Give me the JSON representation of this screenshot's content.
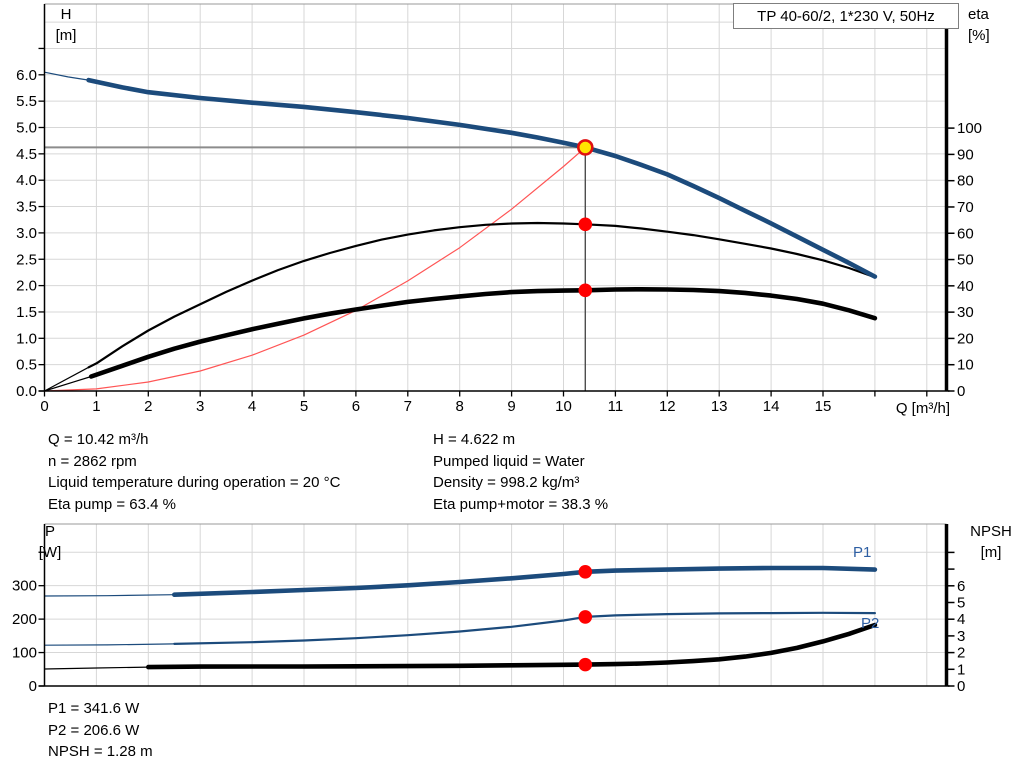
{
  "title_box": "TP 40-60/2, 1*230 V, 50Hz",
  "colors": {
    "curve_blue": "#1c4b7c",
    "curve_black": "#000000",
    "system_red": "#ff5555",
    "marker_red": "#ff0000",
    "op_yellow": "#ffe400",
    "op_ring_red": "#e01010",
    "grid": "#d7d7d7",
    "guide_gray": "#8c8c8c",
    "series_label_blue": "#2e5fa3"
  },
  "info_top": {
    "left": [
      "Q = 10.42 m³/h",
      "n = 2862 rpm",
      "Liquid temperature during operation = 20 °C",
      "Eta pump = 63.4 %"
    ],
    "right": [
      "H = 4.622 m",
      "Pumped liquid = Water",
      "Density = 998.2 kg/m³",
      "Eta pump+motor = 38.3 %"
    ]
  },
  "info_bottom": [
    "P1 = 341.6 W",
    "P2 = 206.6 W",
    "NPSH = 1.28 m"
  ],
  "chart_data": [
    {
      "type": "line",
      "title": "TP 40-60/2, 1*230 V, 50Hz",
      "x_axis": {
        "label": "Q [m³/h]",
        "min": 0,
        "max": 17.4,
        "tick_step": 1,
        "tick_count": 18,
        "tick_labels": [
          "0",
          "1",
          "2",
          "3",
          "4",
          "5",
          "6",
          "7",
          "8",
          "9",
          "10",
          "11",
          "12",
          "13",
          "14",
          "15"
        ]
      },
      "y_left": {
        "name": "H",
        "unit": "[m]",
        "min": 0,
        "max": 7.34,
        "tick_step": 0.5,
        "tick_count": 13,
        "tick_labels": [
          "0.0",
          "0.5",
          "1.0",
          "1.5",
          "2.0",
          "2.5",
          "3.0",
          "3.5",
          "4.0",
          "4.5",
          "5.0",
          "5.5",
          "6.0"
        ]
      },
      "y_right": {
        "name": "eta",
        "unit": "[%]",
        "min": 0,
        "max": 147,
        "tick_step": 10,
        "tick_count": 11,
        "tick_labels": [
          "0",
          "10",
          "20",
          "30",
          "40",
          "50",
          "60",
          "70",
          "80",
          "90",
          "100"
        ]
      },
      "grid": true,
      "series": [
        {
          "name": "system-curve",
          "axis": "left",
          "color": "#ff5555",
          "width": 1.2,
          "points": [
            [
              0,
              0
            ],
            [
              1,
              0.04
            ],
            [
              2,
              0.17
            ],
            [
              3,
              0.38
            ],
            [
              4,
              0.68
            ],
            [
              5,
              1.06
            ],
            [
              6,
              1.53
            ],
            [
              7,
              2.09
            ],
            [
              8,
              2.72
            ],
            [
              9,
              3.45
            ],
            [
              10,
              4.26
            ],
            [
              10.42,
              4.622
            ]
          ]
        },
        {
          "name": "eta-pump",
          "axis": "right",
          "color": "#000000",
          "width": 2.2,
          "thin": [
            [
              0,
              0
            ],
            [
              0.85,
              9
            ]
          ],
          "points": [
            [
              0.85,
              9
            ],
            [
              1,
              10.5
            ],
            [
              1.5,
              17
            ],
            [
              2,
              23
            ],
            [
              2.5,
              28.3
            ],
            [
              3,
              33
            ],
            [
              3.5,
              37.7
            ],
            [
              4,
              42
            ],
            [
              4.5,
              46
            ],
            [
              5,
              49.5
            ],
            [
              5.5,
              52.5
            ],
            [
              6,
              55.2
            ],
            [
              6.5,
              57.6
            ],
            [
              7,
              59.5
            ],
            [
              7.5,
              61.1
            ],
            [
              8,
              62.3
            ],
            [
              8.5,
              63.2
            ],
            [
              9,
              63.7
            ],
            [
              9.5,
              63.9
            ],
            [
              10,
              63.7
            ],
            [
              10.42,
              63.4
            ],
            [
              11,
              62.8
            ],
            [
              11.5,
              61.8
            ],
            [
              12,
              60.6
            ],
            [
              12.5,
              59.3
            ],
            [
              13,
              57.7
            ],
            [
              13.5,
              56.0
            ],
            [
              14,
              54.2
            ],
            [
              14.5,
              52.1
            ],
            [
              15,
              49.7
            ],
            [
              15.5,
              46.8
            ],
            [
              16,
              43.3
            ]
          ]
        },
        {
          "name": "eta-pump-motor",
          "axis": "right",
          "color": "#000000",
          "width": 4.6,
          "thin": [
            [
              0,
              0
            ],
            [
              0.9,
              5.5
            ]
          ],
          "points": [
            [
              0.9,
              5.5
            ],
            [
              1.5,
              9.6
            ],
            [
              2,
              13
            ],
            [
              2.5,
              16.1
            ],
            [
              3,
              18.8
            ],
            [
              3.5,
              21.2
            ],
            [
              4,
              23.5
            ],
            [
              4.5,
              25.6
            ],
            [
              5,
              27.6
            ],
            [
              5.5,
              29.4
            ],
            [
              6,
              31
            ],
            [
              6.5,
              32.5
            ],
            [
              7,
              33.9
            ],
            [
              7.5,
              35
            ],
            [
              8,
              36
            ],
            [
              8.5,
              36.9
            ],
            [
              9,
              37.6
            ],
            [
              9.5,
              38
            ],
            [
              10,
              38.2
            ],
            [
              10.42,
              38.3
            ],
            [
              11,
              38.6
            ],
            [
              11.5,
              38.7
            ],
            [
              12,
              38.6
            ],
            [
              12.5,
              38.4
            ],
            [
              13,
              38
            ],
            [
              13.5,
              37.3
            ],
            [
              14,
              36.3
            ],
            [
              14.5,
              35
            ],
            [
              15,
              33.2
            ],
            [
              15.5,
              30.7
            ],
            [
              16,
              27.7
            ]
          ]
        },
        {
          "name": "QH-curve",
          "axis": "left",
          "color": "#1c4b7c",
          "width": 4.6,
          "thin": [
            [
              0,
              6.05
            ],
            [
              0.45,
              5.96
            ],
            [
              0.85,
              5.9
            ]
          ],
          "points": [
            [
              0.85,
              5.9
            ],
            [
              1.5,
              5.76
            ],
            [
              2,
              5.67
            ],
            [
              3,
              5.56
            ],
            [
              4,
              5.47
            ],
            [
              5,
              5.39
            ],
            [
              6,
              5.29
            ],
            [
              7,
              5.18
            ],
            [
              8,
              5.05
            ],
            [
              9,
              4.9
            ],
            [
              9.5,
              4.81
            ],
            [
              10,
              4.71
            ],
            [
              10.42,
              4.622
            ],
            [
              11,
              4.46
            ],
            [
              11.5,
              4.29
            ],
            [
              12,
              4.11
            ],
            [
              12.5,
              3.89
            ],
            [
              13,
              3.66
            ],
            [
              13.5,
              3.42
            ],
            [
              14,
              3.18
            ],
            [
              14.5,
              2.93
            ],
            [
              15,
              2.68
            ],
            [
              15.5,
              2.43
            ],
            [
              16,
              2.17
            ]
          ]
        }
      ],
      "operating_point": {
        "Q": 10.42,
        "H": 4.622
      },
      "markers": [
        {
          "series": "eta-pump",
          "axis": "right",
          "Q": 10.42,
          "value": 63.4
        },
        {
          "series": "eta-pump-motor",
          "axis": "right",
          "Q": 10.42,
          "value": 38.3
        }
      ]
    },
    {
      "type": "line",
      "x_axis": {
        "label": "",
        "min": 0,
        "max": 17.4,
        "tick_step": 1,
        "tick_count": 0,
        "tick_labels": []
      },
      "y_left": {
        "name": "P",
        "unit": "[W]",
        "min": 0,
        "max": 484,
        "tick_step": 100,
        "tick_count": 5,
        "tick_labels": [
          "0",
          "100",
          "200",
          "300"
        ]
      },
      "y_right": {
        "name": "NPSH",
        "unit": "[m]",
        "min": 0,
        "max": 9.7,
        "tick_step": 1,
        "tick_count": 9,
        "tick_labels": [
          "0",
          "1",
          "2",
          "3",
          "4",
          "5",
          "6"
        ]
      },
      "grid": true,
      "series": [
        {
          "name": "P1",
          "axis": "left",
          "color": "#1c4b7c",
          "width": 4.6,
          "thin": [
            [
              0,
              269
            ],
            [
              1.2,
              270
            ],
            [
              2.5,
              273
            ]
          ],
          "points": [
            [
              2.5,
              273
            ],
            [
              4,
              281
            ],
            [
              5,
              287
            ],
            [
              6,
              293
            ],
            [
              7,
              301
            ],
            [
              8,
              311
            ],
            [
              9,
              322
            ],
            [
              10,
              335
            ],
            [
              10.42,
              341.6
            ],
            [
              11,
              345
            ],
            [
              12,
              348
            ],
            [
              13,
              351
            ],
            [
              14,
              353
            ],
            [
              15,
              353
            ],
            [
              16,
              348
            ]
          ]
        },
        {
          "name": "P2",
          "axis": "left",
          "color": "#1c4b7c",
          "width": 2.2,
          "thin": [
            [
              0,
              122
            ],
            [
              1.2,
              123
            ],
            [
              2.5,
              126
            ]
          ],
          "points": [
            [
              2.5,
              126
            ],
            [
              4,
              131
            ],
            [
              5,
              136
            ],
            [
              6,
              143
            ],
            [
              7,
              152
            ],
            [
              8,
              163
            ],
            [
              9,
              177
            ],
            [
              10,
              196
            ],
            [
              10.42,
              206.6
            ],
            [
              11,
              211
            ],
            [
              12,
              215
            ],
            [
              13,
              217
            ],
            [
              14,
              218
            ],
            [
              15,
              219
            ],
            [
              16,
              218
            ]
          ]
        },
        {
          "name": "NPSH",
          "axis": "right",
          "color": "#000000",
          "width": 4.6,
          "thin": [
            [
              0,
              1.02
            ],
            [
              1,
              1.08
            ],
            [
              2,
              1.13
            ]
          ],
          "points": [
            [
              2,
              1.13
            ],
            [
              3,
              1.16
            ],
            [
              4,
              1.17
            ],
            [
              5,
              1.17
            ],
            [
              6,
              1.18
            ],
            [
              7,
              1.19
            ],
            [
              8,
              1.21
            ],
            [
              9,
              1.24
            ],
            [
              10,
              1.27
            ],
            [
              10.42,
              1.28
            ],
            [
              11,
              1.31
            ],
            [
              11.5,
              1.35
            ],
            [
              12,
              1.41
            ],
            [
              12.5,
              1.49
            ],
            [
              13,
              1.6
            ],
            [
              13.5,
              1.76
            ],
            [
              14,
              1.98
            ],
            [
              14.5,
              2.28
            ],
            [
              15,
              2.67
            ],
            [
              15.5,
              3.12
            ],
            [
              16,
              3.65
            ]
          ]
        }
      ],
      "markers": [
        {
          "series": "P1",
          "axis": "left",
          "Q": 10.42,
          "value": 341.6
        },
        {
          "series": "P2",
          "axis": "left",
          "Q": 10.42,
          "value": 206.6
        },
        {
          "series": "NPSH",
          "axis": "right",
          "Q": 10.42,
          "value": 1.28
        }
      ]
    }
  ]
}
